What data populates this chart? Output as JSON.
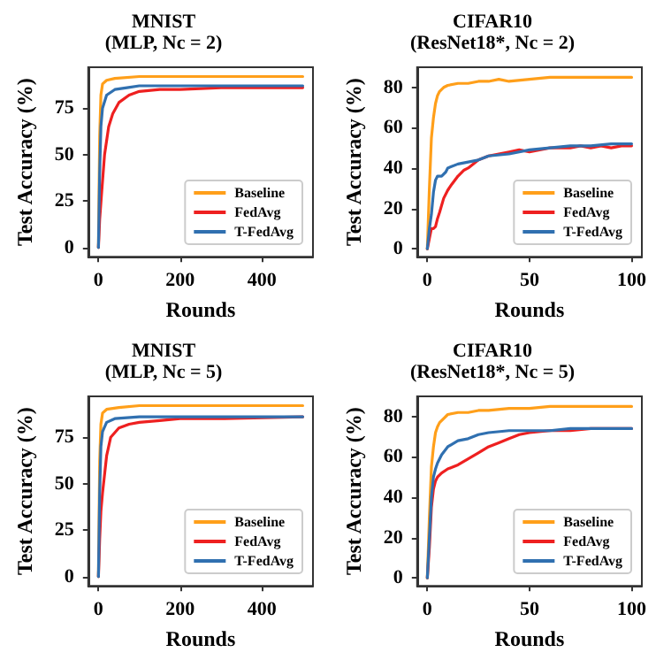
{
  "chart_data": [
    {
      "type": "line",
      "title": "MNIST",
      "subtitle": "(MLP, Nc = 2)",
      "xlabel": "Rounds",
      "ylabel": "Test Accuracy (%)",
      "xlim": [
        -25,
        525
      ],
      "xticks": [
        0,
        200,
        400
      ],
      "ylim": [
        -5,
        97
      ],
      "yticks": [
        0,
        25,
        50,
        75
      ],
      "legend": "bottom right",
      "grid": false,
      "marker": "none",
      "line_style": "solid",
      "series": [
        {
          "name": "Baseline",
          "color": "#ff9f1a",
          "x": [
            0,
            3,
            6,
            10,
            20,
            40,
            100,
            200,
            300,
            500
          ],
          "values": [
            0,
            60,
            82,
            88,
            90,
            91,
            92,
            92,
            92,
            92
          ]
        },
        {
          "name": "FedAvg",
          "color": "#ee2020",
          "x": [
            0,
            3,
            8,
            15,
            25,
            35,
            50,
            75,
            100,
            150,
            200,
            300,
            400,
            500
          ],
          "values": [
            0,
            15,
            30,
            50,
            65,
            72,
            78,
            82,
            84,
            85,
            85,
            86,
            86,
            86
          ]
        },
        {
          "name": "T-FedAvg",
          "color": "#3070b0",
          "x": [
            0,
            3,
            6,
            10,
            20,
            40,
            70,
            100,
            200,
            500
          ],
          "values": [
            0,
            40,
            65,
            75,
            82,
            85,
            86,
            87,
            87,
            87
          ]
        }
      ]
    },
    {
      "type": "line",
      "title": "CIFAR10",
      "subtitle": "(ResNet18*, Nc = 2)",
      "xlabel": "Rounds",
      "ylabel": "Test Accuracy (%)",
      "xlim": [
        -5,
        105
      ],
      "xticks": [
        0,
        50,
        100
      ],
      "ylim": [
        -4,
        90
      ],
      "yticks": [
        0,
        20,
        40,
        60,
        80
      ],
      "legend": "bottom right",
      "grid": false,
      "marker": "none",
      "line_style": "solid",
      "series": [
        {
          "name": "Baseline",
          "color": "#ff9f1a",
          "x": [
            0,
            1,
            2,
            3,
            4,
            5,
            6,
            8,
            10,
            15,
            20,
            25,
            30,
            35,
            40,
            50,
            60,
            70,
            80,
            90,
            100
          ],
          "values": [
            0,
            30,
            55,
            65,
            72,
            76,
            78,
            80,
            81,
            82,
            82,
            83,
            83,
            84,
            83,
            84,
            85,
            85,
            85,
            85,
            85
          ]
        },
        {
          "name": "FedAvg",
          "color": "#ee2020",
          "x": [
            0,
            1,
            2,
            3,
            4,
            5,
            6,
            8,
            10,
            12,
            15,
            18,
            20,
            25,
            30,
            35,
            40,
            45,
            50,
            55,
            60,
            65,
            70,
            75,
            80,
            85,
            90,
            95,
            100
          ],
          "values": [
            0,
            5,
            10,
            10,
            11,
            15,
            18,
            25,
            29,
            32,
            36,
            39,
            40,
            44,
            46,
            47,
            48,
            49,
            48,
            49,
            50,
            50,
            50,
            51,
            50,
            51,
            50,
            51,
            51
          ]
        },
        {
          "name": "T-FedAvg",
          "color": "#3070b0",
          "x": [
            0,
            1,
            2,
            3,
            4,
            5,
            7,
            9,
            10,
            15,
            20,
            25,
            30,
            40,
            50,
            60,
            70,
            80,
            90,
            100
          ],
          "values": [
            0,
            10,
            17,
            28,
            34,
            36,
            36,
            38,
            40,
            42,
            43,
            44,
            46,
            47,
            49,
            50,
            51,
            51,
            52,
            52
          ]
        }
      ]
    },
    {
      "type": "line",
      "title": "MNIST",
      "subtitle": "(MLP, Nc = 5)",
      "xlabel": "Rounds",
      "ylabel": "Test Accuracy (%)",
      "xlim": [
        -25,
        525
      ],
      "xticks": [
        0,
        200,
        400
      ],
      "ylim": [
        -5,
        97
      ],
      "yticks": [
        0,
        25,
        50,
        75
      ],
      "legend": "bottom right",
      "grid": false,
      "marker": "none",
      "line_style": "solid",
      "series": [
        {
          "name": "Baseline",
          "color": "#ff9f1a",
          "x": [
            0,
            3,
            6,
            10,
            20,
            50,
            100,
            500
          ],
          "values": [
            0,
            62,
            82,
            88,
            90,
            91,
            92,
            92
          ]
        },
        {
          "name": "FedAvg",
          "color": "#ee2020",
          "x": [
            0,
            3,
            6,
            10,
            20,
            30,
            50,
            75,
            100,
            150,
            200,
            300,
            500
          ],
          "values": [
            0,
            20,
            35,
            45,
            65,
            75,
            80,
            82,
            83,
            84,
            85,
            85,
            86
          ]
        },
        {
          "name": "T-FedAvg",
          "color": "#3070b0",
          "x": [
            0,
            3,
            6,
            10,
            20,
            40,
            100,
            500
          ],
          "values": [
            0,
            45,
            70,
            78,
            83,
            85,
            86,
            86
          ]
        }
      ]
    },
    {
      "type": "line",
      "title": "CIFAR10",
      "subtitle": "(ResNet18*, Nc = 5)",
      "xlabel": "Rounds",
      "ylabel": "Test Accuracy (%)",
      "xlim": [
        -5,
        105
      ],
      "xticks": [
        0,
        50,
        100
      ],
      "ylim": [
        -4,
        90
      ],
      "yticks": [
        0,
        20,
        40,
        60,
        80
      ],
      "legend": "bottom right",
      "grid": false,
      "marker": "none",
      "line_style": "solid",
      "series": [
        {
          "name": "Baseline",
          "color": "#ff9f1a",
          "x": [
            0,
            1,
            2,
            3,
            4,
            5,
            6,
            8,
            10,
            15,
            20,
            25,
            30,
            40,
            50,
            60,
            70,
            80,
            90,
            100
          ],
          "values": [
            0,
            30,
            55,
            65,
            72,
            75,
            77,
            79,
            81,
            82,
            82,
            83,
            83,
            84,
            84,
            85,
            85,
            85,
            85,
            85
          ]
        },
        {
          "name": "FedAvg",
          "color": "#ee2020",
          "x": [
            0,
            1,
            2,
            3,
            4,
            5,
            7,
            10,
            15,
            20,
            25,
            30,
            35,
            40,
            45,
            50,
            60,
            70,
            80,
            90,
            100
          ],
          "values": [
            0,
            15,
            35,
            44,
            48,
            50,
            52,
            54,
            56,
            59,
            62,
            65,
            67,
            69,
            71,
            72,
            73,
            73,
            74,
            74,
            74
          ]
        },
        {
          "name": "T-FedAvg",
          "color": "#3070b0",
          "x": [
            0,
            1,
            2,
            3,
            4,
            5,
            7,
            10,
            15,
            20,
            25,
            30,
            40,
            50,
            60,
            70,
            80,
            90,
            100
          ],
          "values": [
            0,
            20,
            40,
            50,
            54,
            57,
            61,
            65,
            68,
            69,
            71,
            72,
            73,
            73,
            73,
            74,
            74,
            74,
            74
          ]
        }
      ]
    }
  ]
}
